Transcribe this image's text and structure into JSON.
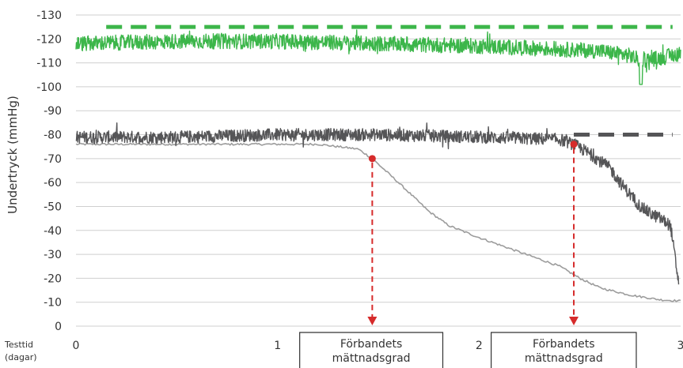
{
  "chart_data": {
    "type": "line",
    "ylabel": "Undertryck (mmHg)",
    "xlabel_lines": [
      "Testtid",
      "(dagar)"
    ],
    "y_ticks": [
      "-130",
      "-120",
      "-110",
      "-100",
      "-90",
      "-80",
      "-70",
      "-60",
      "-50",
      "-40",
      "-30",
      "-20",
      "-10",
      "0"
    ],
    "x_ticks": [
      "0",
      "1",
      "2",
      "3"
    ],
    "xlim": [
      0,
      3
    ],
    "ylim": [
      0,
      130
    ],
    "grid": true,
    "colors": {
      "upper_noise": "#3cb64a",
      "upper_target": "#3cb64a",
      "dark_noise": "#555557",
      "dark_target": "#555557",
      "light_curve": "#9c9c9c",
      "marker": "#d62b2b"
    },
    "series": [
      {
        "style": "noisy-line",
        "color_key": "upper_noise",
        "x": [
          0,
          0.5,
          1,
          1.5,
          2,
          2.3,
          2.6,
          2.75,
          2.8,
          2.9,
          3
        ],
        "y": [
          118,
          119,
          119,
          118,
          117,
          116,
          115,
          113,
          111,
          112,
          114
        ]
      },
      {
        "style": "dashed",
        "color_key": "upper_target",
        "x": [
          0.15,
          2.96
        ],
        "y": [
          125,
          125
        ]
      },
      {
        "style": "noisy-line",
        "color_key": "dark_noise",
        "x": [
          0,
          0.5,
          1,
          1.5,
          2,
          2.4,
          2.47,
          2.55,
          2.65,
          2.7,
          2.75,
          2.8,
          2.85,
          2.9,
          2.95,
          2.99
        ],
        "y": [
          79,
          79,
          80,
          80,
          79,
          78,
          76,
          72,
          66,
          60,
          55,
          50,
          47,
          45,
          42,
          18
        ]
      },
      {
        "style": "dashed",
        "color_key": "dark_target",
        "x": [
          2.47,
          2.96
        ],
        "y": [
          80,
          80
        ]
      },
      {
        "style": "smooth-line",
        "color_key": "light_curve",
        "x": [
          0,
          0.5,
          1,
          1.2,
          1.4,
          1.47,
          1.6,
          1.75,
          1.85,
          2,
          2.2,
          2.4,
          2.5,
          2.6,
          2.75,
          2.9,
          3
        ],
        "y": [
          76,
          76,
          76,
          76,
          74,
          70,
          60,
          48,
          42,
          37,
          31,
          25,
          20,
          16,
          13,
          11,
          10.5
        ]
      }
    ],
    "markers": [
      {
        "x": 1.47,
        "y": 70
      },
      {
        "x": 2.47,
        "y": 76
      }
    ],
    "annotation_boxes": [
      {
        "x_from": 1.11,
        "x_to": 1.82,
        "lines": [
          "Förbandets",
          "mättnadsgrad"
        ]
      },
      {
        "x_from": 2.06,
        "x_to": 2.78,
        "lines": [
          "Förbandets",
          "mättnadsgrad"
        ]
      }
    ]
  }
}
